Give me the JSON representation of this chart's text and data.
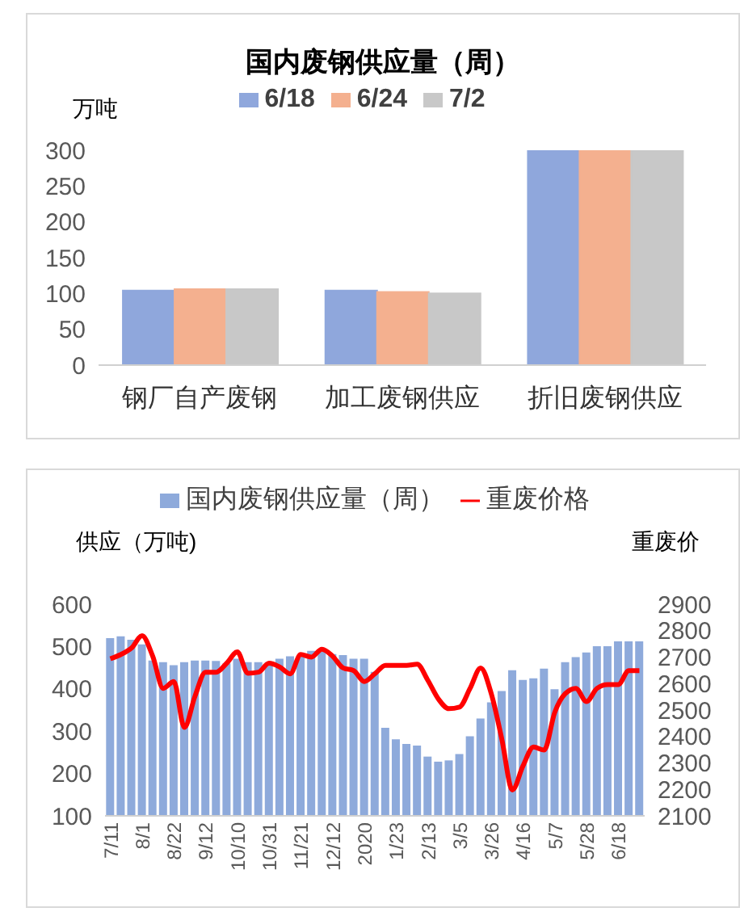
{
  "chart_data": [
    {
      "type": "bar",
      "title": "国内废钢供应量（周）",
      "ylabel": "万吨",
      "categories": [
        "钢厂自产废钢",
        "加工废钢供应",
        "折旧废钢供应"
      ],
      "series": [
        {
          "name": "6/18",
          "color": "#8fa7dc",
          "values": [
            104,
            104,
            300
          ]
        },
        {
          "name": "6/24",
          "color": "#f4b08f",
          "values": [
            106,
            102,
            300
          ]
        },
        {
          "name": "7/2",
          "color": "#c8c8c8",
          "values": [
            106,
            100,
            300
          ]
        }
      ],
      "ylim": [
        0,
        300
      ],
      "yticks": [
        0,
        50,
        100,
        150,
        200,
        250,
        300
      ],
      "grid": false,
      "legend": "top"
    },
    {
      "type": "bar",
      "ylabel": "供应（万吨)",
      "y2label": "重废价",
      "categories": [
        "7/11",
        null,
        null,
        "8/1",
        null,
        null,
        "8/22",
        null,
        null,
        "9/12",
        null,
        null,
        "10/10",
        null,
        null,
        "10/31",
        null,
        null,
        "11/21",
        null,
        null,
        "12/12",
        null,
        null,
        "2020",
        null,
        null,
        "1/23",
        null,
        null,
        "2/13",
        null,
        null,
        "3/5",
        null,
        null,
        "3/26",
        null,
        null,
        "4/16",
        null,
        null,
        "5/7",
        null,
        null,
        "5/28",
        null,
        null,
        "6/18",
        null,
        null
      ],
      "series": [
        {
          "name": "国内废钢供应量（周）",
          "type": "bar",
          "color": "#8eaadb",
          "values": [
            520,
            524,
            516,
            505,
            467,
            463,
            456,
            463,
            467,
            467,
            466,
            460,
            471,
            463,
            463,
            463,
            471,
            477,
            480,
            490,
            489,
            482,
            480,
            471,
            471,
            440,
            308,
            281,
            270,
            266,
            240,
            228,
            231,
            246,
            288,
            330,
            368,
            395,
            444,
            421,
            425,
            448,
            399,
            463,
            475,
            486,
            501,
            501,
            512,
            512,
            512
          ]
        },
        {
          "name": "重废价格",
          "type": "line",
          "axis": "y2",
          "color": "#ff0000",
          "values": [
            2694,
            2710,
            2734,
            2781,
            2704,
            2582,
            2608,
            2434,
            2552,
            2643,
            2643,
            2677,
            2720,
            2639,
            2643,
            2677,
            2663,
            2637,
            2710,
            2700,
            2730,
            2704,
            2659,
            2649,
            2608,
            2637,
            2669,
            2669,
            2669,
            2673,
            2613,
            2542,
            2505,
            2511,
            2582,
            2659,
            2562,
            2390,
            2198,
            2289,
            2360,
            2349,
            2491,
            2562,
            2582,
            2532,
            2582,
            2596,
            2596,
            2649,
            2649
          ]
        }
      ],
      "ylim": [
        100,
        600
      ],
      "yticks": [
        100,
        200,
        300,
        400,
        500,
        600
      ],
      "y2lim": [
        2100,
        2900
      ],
      "y2ticks": [
        2100,
        2200,
        2300,
        2400,
        2500,
        2600,
        2700,
        2800,
        2900
      ],
      "grid": false,
      "legend": "top",
      "marker": "none",
      "line_style": "solid"
    }
  ]
}
